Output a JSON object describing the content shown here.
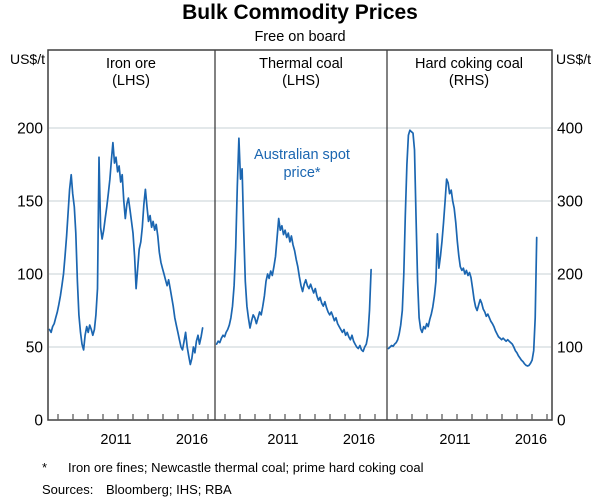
{
  "chart_data": {
    "type": "line",
    "title": "Bulk Commodity Prices",
    "subtitle": "Free on board",
    "unit_left": "US$/t",
    "unit_right": "US$/t",
    "line_color": "#1b66b1",
    "grid_color": "#c7d0d6",
    "frame_color": "#3f3f3f",
    "left_axis": {
      "ticks": [
        0,
        50,
        100,
        150,
        200
      ],
      "range": [
        0,
        253
      ]
    },
    "right_axis": {
      "ticks": [
        0,
        100,
        200,
        300,
        400
      ],
      "range": [
        0,
        506
      ]
    },
    "x_range_years": [
      2007,
      2017.8
    ],
    "x_label_years": [
      "2011",
      "2016"
    ],
    "legend_position": "none",
    "grid": "horizontal",
    "panels": [
      {
        "title": "Iron ore",
        "axis_label": "(LHS)",
        "scale": "left",
        "series": {
          "name": "Iron ore spot price",
          "t_start": 2007.1,
          "t_step": 0.1,
          "values": [
            62,
            60,
            64,
            66,
            70,
            74,
            79,
            85,
            92,
            100,
            112,
            126,
            142,
            158,
            168,
            155,
            146,
            128,
            95,
            72,
            60,
            52,
            48,
            58,
            64,
            60,
            65,
            62,
            58,
            62,
            72,
            90,
            180,
            132,
            124,
            130,
            138,
            146,
            155,
            165,
            178,
            190,
            176,
            180,
            170,
            174,
            163,
            168,
            150,
            138,
            148,
            152,
            144,
            136,
            128,
            112,
            90,
            104,
            117,
            122,
            132,
            148,
            158,
            146,
            136,
            140,
            132,
            136,
            130,
            134,
            126,
            115,
            108,
            104,
            100,
            96,
            92,
            96,
            90,
            84,
            78,
            70,
            65,
            60,
            55,
            50,
            48,
            54,
            60,
            50,
            44,
            38,
            42,
            50,
            46,
            54,
            58,
            52,
            57,
            63
          ]
        }
      },
      {
        "title": "Thermal coal",
        "axis_label": "(LHS)",
        "scale": "left",
        "annotation": "Australian spot\nprice*",
        "series": {
          "name": "Thermal coal spot price",
          "t_start": 2007.1,
          "t_step": 0.1,
          "values": [
            52,
            54,
            53,
            56,
            58,
            57,
            60,
            62,
            65,
            70,
            78,
            92,
            118,
            160,
            193,
            165,
            172,
            130,
            95,
            78,
            70,
            63,
            68,
            72,
            70,
            66,
            70,
            74,
            72,
            78,
            85,
            95,
            100,
            97,
            102,
            99,
            105,
            112,
            125,
            138,
            130,
            133,
            127,
            130,
            125,
            128,
            122,
            126,
            120,
            116,
            110,
            105,
            98,
            92,
            88,
            93,
            96,
            92,
            90,
            93,
            90,
            87,
            90,
            85,
            82,
            84,
            80,
            78,
            81,
            77,
            74,
            72,
            74,
            71,
            68,
            70,
            66,
            64,
            62,
            60,
            62,
            58,
            60,
            57,
            55,
            58,
            54,
            52,
            50,
            49,
            51,
            48,
            47,
            50,
            52,
            58,
            75,
            103
          ]
        }
      },
      {
        "title": "Hard coking coal",
        "axis_label": "(RHS)",
        "scale": "right",
        "series": {
          "name": "Hard coking coal spot price",
          "t_start": 2007.1,
          "t_step": 0.1,
          "values": [
            98,
            100,
            102,
            101,
            104,
            106,
            110,
            118,
            130,
            150,
            200,
            280,
            350,
            390,
            397,
            395,
            393,
            370,
            280,
            190,
            140,
            125,
            120,
            128,
            125,
            132,
            128,
            138,
            145,
            155,
            170,
            190,
            255,
            208,
            225,
            245,
            270,
            300,
            330,
            325,
            310,
            315,
            300,
            290,
            270,
            245,
            225,
            210,
            205,
            208,
            200,
            205,
            198,
            202,
            195,
            180,
            165,
            155,
            150,
            158,
            165,
            160,
            152,
            148,
            142,
            145,
            140,
            135,
            132,
            128,
            122,
            118,
            114,
            112,
            110,
            112,
            110,
            108,
            110,
            108,
            106,
            104,
            100,
            95,
            92,
            88,
            85,
            82,
            80,
            77,
            75,
            74,
            75,
            78,
            82,
            95,
            140,
            250
          ]
        }
      }
    ]
  },
  "footnote": {
    "marker": "*",
    "text": "Iron ore fines; Newcastle thermal coal; prime hard coking coal"
  },
  "sources": {
    "label": "Sources:",
    "text": "Bloomberg; IHS; RBA"
  }
}
